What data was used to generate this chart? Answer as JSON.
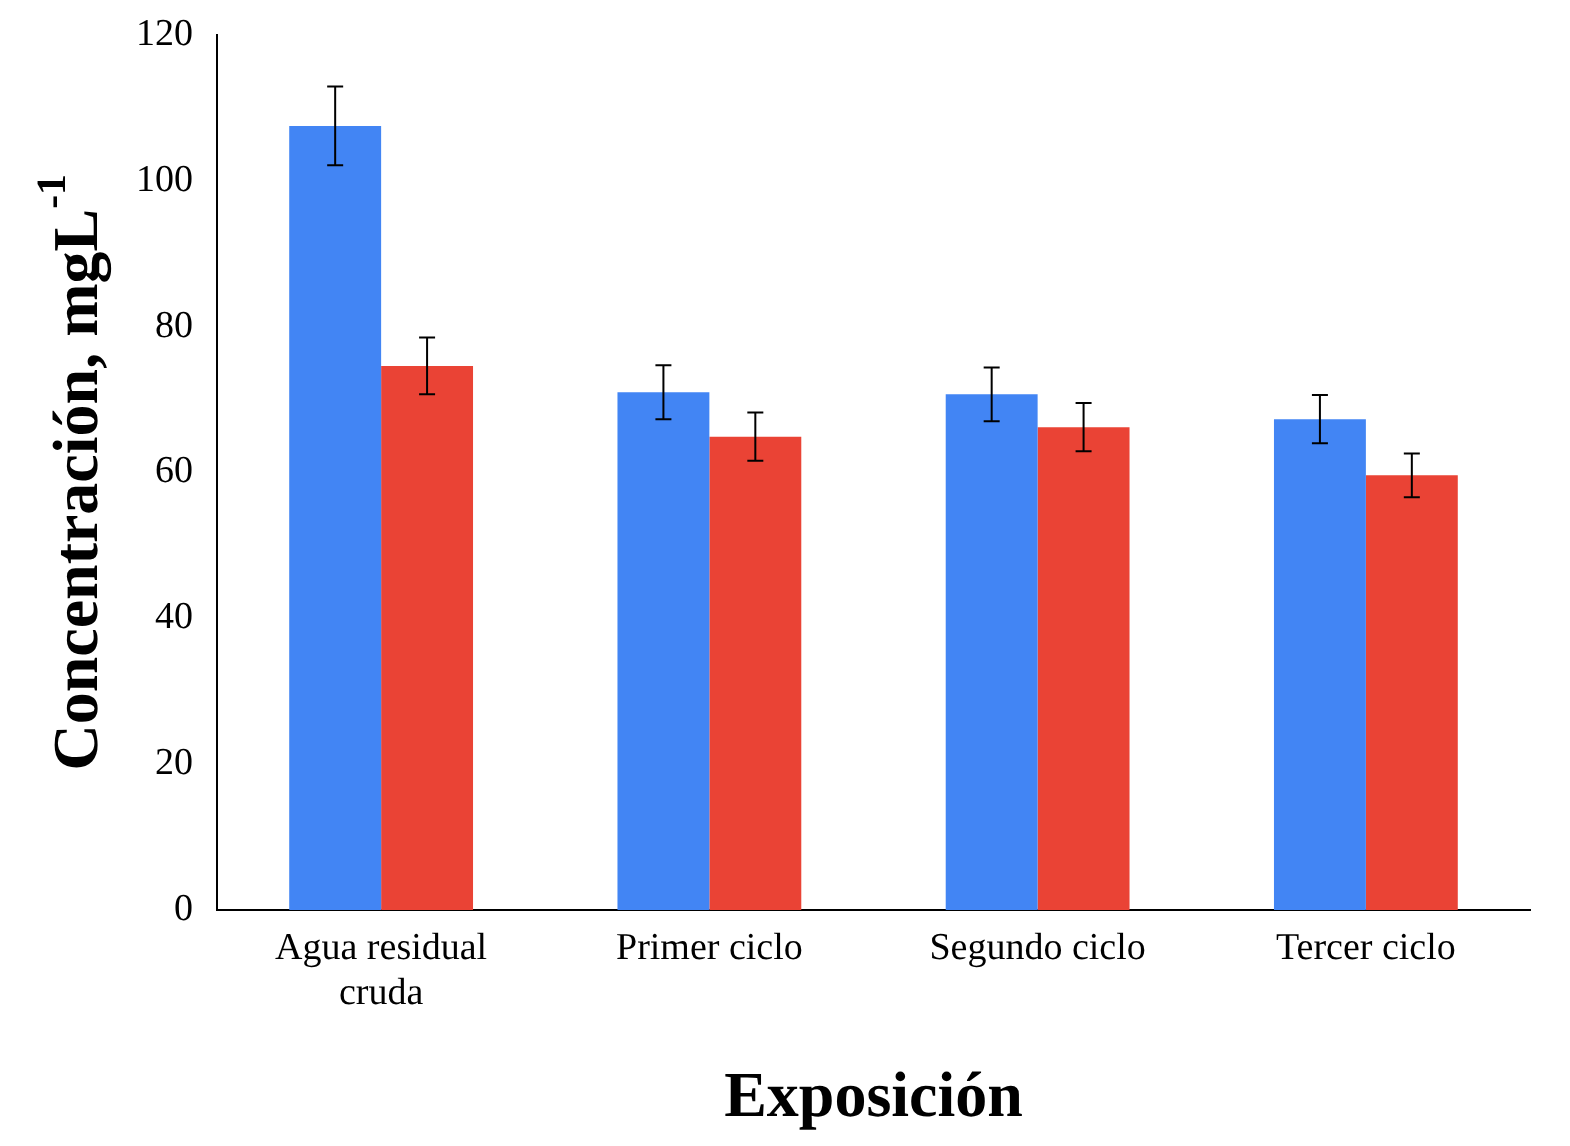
{
  "chart_data": {
    "type": "bar",
    "xlabel": "Exposición",
    "ylabel": "Concentración, mgL$^{-1}$",
    "categories": [
      "Agua residual cruda",
      "Primer ciclo",
      "Segundo ciclo",
      "Tercer ciclo"
    ],
    "series": [
      {
        "color": "#4285f4",
        "values": [
          107.5,
          71.0,
          70.7,
          67.3
        ],
        "errors": [
          5.4,
          3.7,
          3.7,
          3.3
        ]
      },
      {
        "color": "#ea4335",
        "values": [
          74.6,
          64.9,
          66.2,
          59.6
        ],
        "errors": [
          3.9,
          3.3,
          3.3,
          3.0
        ]
      }
    ],
    "ylim": [
      0,
      120
    ],
    "yticks": [
      0,
      20,
      40,
      60,
      80,
      100,
      120
    ],
    "grid": false,
    "legend": false
  }
}
